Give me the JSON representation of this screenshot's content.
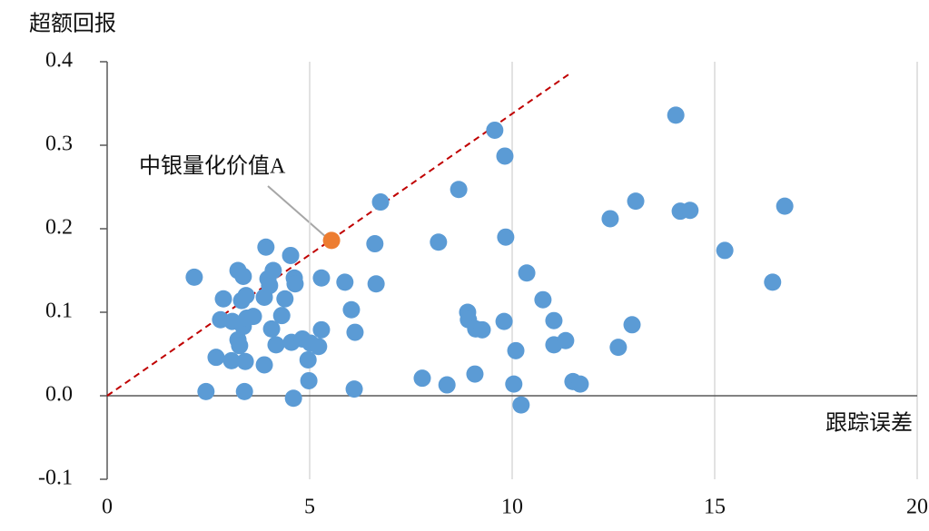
{
  "chart_data": {
    "type": "scatter",
    "y_label": "超额回报",
    "x_label": "跟踪误差",
    "annotation": "中银量化价值A",
    "xlim": [
      0,
      20
    ],
    "xticks": [
      0,
      5,
      10,
      15,
      20
    ],
    "ylim": [
      -0.1,
      0.4
    ],
    "yticks": [
      {
        "value": -0.1,
        "label": "-0.1"
      },
      {
        "value": 0,
        "label": "0.0"
      },
      {
        "value": 0.1,
        "label": "0.1"
      },
      {
        "value": 0.2,
        "label": "0.2"
      },
      {
        "value": 0.3,
        "label": "0.3"
      },
      {
        "value": 0.4,
        "label": "0.4"
      }
    ],
    "grid": "x",
    "series": [
      {
        "color": "#5b9bd5",
        "x": [
          2.15,
          2.44,
          2.69,
          2.87,
          2.8,
          3.07,
          3.09,
          3.23,
          3.36,
          3.32,
          3.23,
          3.27,
          3.39,
          3.41,
          3.43,
          3.36,
          3.45,
          3.61,
          3.88,
          3.92,
          3.88,
          3.97,
          4.01,
          4.1,
          4.06,
          4.17,
          4.31,
          4.39,
          4.53,
          4.55,
          4.62,
          4.64,
          4.6,
          4.82,
          4.96,
          4.98,
          5.02,
          5.22,
          5.29,
          5.29,
          5.87,
          6.03,
          6.12,
          6.1,
          6.61,
          6.64,
          6.75,
          7.78,
          8.18,
          8.39,
          8.68,
          8.9,
          8.92,
          9.1,
          9.26,
          9.08,
          9.57,
          9.8,
          9.82,
          9.84,
          10.09,
          10.04,
          10.22,
          10.36,
          10.76,
          11.03,
          11.03,
          11.32,
          11.5,
          11.68,
          12.42,
          12.62,
          12.96,
          13.05,
          14.04,
          14.15,
          14.39,
          15.25,
          16.43,
          16.73
        ],
        "values": [
          0.142,
          0.005,
          0.046,
          0.116,
          0.091,
          0.042,
          0.089,
          0.15,
          0.143,
          0.114,
          0.067,
          0.06,
          0.005,
          0.041,
          0.12,
          0.083,
          0.093,
          0.095,
          0.037,
          0.178,
          0.118,
          0.14,
          0.132,
          0.15,
          0.08,
          0.061,
          0.096,
          0.116,
          0.168,
          0.064,
          0.141,
          0.134,
          -0.003,
          0.068,
          0.043,
          0.018,
          0.063,
          0.059,
          0.141,
          0.079,
          0.136,
          0.103,
          0.076,
          0.008,
          0.182,
          0.134,
          0.232,
          0.021,
          0.184,
          0.013,
          0.247,
          0.1,
          0.091,
          0.08,
          0.079,
          0.026,
          0.318,
          0.089,
          0.287,
          0.19,
          0.054,
          0.014,
          -0.011,
          0.147,
          0.115,
          0.09,
          0.061,
          0.066,
          0.017,
          0.014,
          0.212,
          0.058,
          0.085,
          0.233,
          0.336,
          0.221,
          0.222,
          0.174,
          0.136,
          0.227
        ]
      },
      {
        "color": "#ed7d31",
        "x": [
          5.54
        ],
        "values": [
          0.186
        ]
      }
    ],
    "reference_line": {
      "color": "#c00000",
      "x": [
        0,
        11.4
      ],
      "values": [
        0,
        0.385
      ]
    }
  }
}
